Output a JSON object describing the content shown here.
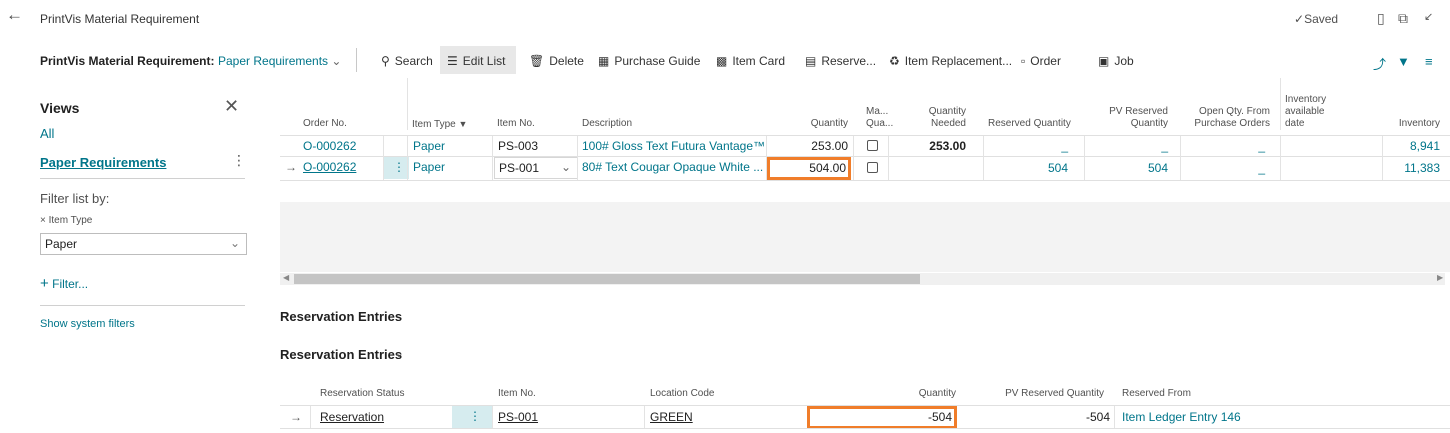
{
  "window": {
    "title": "PrintVis Material Requirement",
    "saved_label": "Saved"
  },
  "actionbar": {
    "page_name": "PrintVis Material Requirement:",
    "view_name": "Paper Requirements",
    "actions": {
      "search": "Search",
      "edit_list": "Edit List",
      "delete": "Delete",
      "purchase_guide": "Purchase Guide",
      "item_card": "Item Card",
      "reserve": "Reserve...",
      "item_replacement": "Item Replacement...",
      "order": "Order",
      "job": "Job"
    }
  },
  "views": {
    "title": "Views",
    "all": "All",
    "paper_requirements": "Paper Requirements",
    "filter_by": "Filter list by:",
    "filter_tag": "Item Type",
    "filter_value": "Paper",
    "add_filter": "Filter...",
    "show_system_filters": "Show system filters"
  },
  "grid": {
    "headers": {
      "order_no": "Order No.",
      "item_type": "Item Type",
      "item_no": "Item No.",
      "description": "Description",
      "quantity": "Quantity",
      "ma_qua_1": "Ma...",
      "ma_qua_2": "Qua...",
      "qty_needed_1": "Quantity",
      "qty_needed_2": "Needed",
      "reserved_qty": "Reserved Quantity",
      "pv_reserved_1": "PV Reserved",
      "pv_reserved_2": "Quantity",
      "open_qty_1": "Open Qty. From",
      "open_qty_2": "Purchase Orders",
      "inv_date_1": "Inventory",
      "inv_date_2": "available",
      "inv_date_3": "date",
      "inventory": "Inventory"
    },
    "rows": [
      {
        "order_no": "O-000262",
        "item_type": "Paper",
        "item_no": "PS-003",
        "description": "100# Gloss Text Futura Vantage™",
        "quantity": "253.00",
        "qty_needed": "253.00",
        "reserved_qty": "_",
        "pv_reserved": "_",
        "open_qty": "_",
        "inventory": "8,941"
      },
      {
        "order_no": "O-000262",
        "item_type": "Paper",
        "item_no": "PS-001",
        "description": "80# Text Cougar Opaque White ...",
        "quantity": "504.00",
        "qty_needed": "",
        "reserved_qty": "504",
        "pv_reserved": "504",
        "open_qty": "_",
        "inventory": "11,383"
      }
    ]
  },
  "reservation": {
    "section_title": "Reservation Entries",
    "subpage_title": "Reservation Entries",
    "headers": {
      "status": "Reservation Status",
      "item_no": "Item No.",
      "location": "Location Code",
      "quantity": "Quantity",
      "pv_reserved": "PV Reserved Quantity",
      "reserved_from": "Reserved From"
    },
    "row": {
      "status": "Reservation",
      "item_no": "PS-001",
      "location": "GREEN",
      "quantity": "-504",
      "pv_reserved": "-504",
      "reserved_from": "Item Ledger Entry 146"
    }
  },
  "colors": {
    "accent": "#00758a",
    "highlight": "#f07d2a",
    "selected_cell": "#d6ecef"
  }
}
